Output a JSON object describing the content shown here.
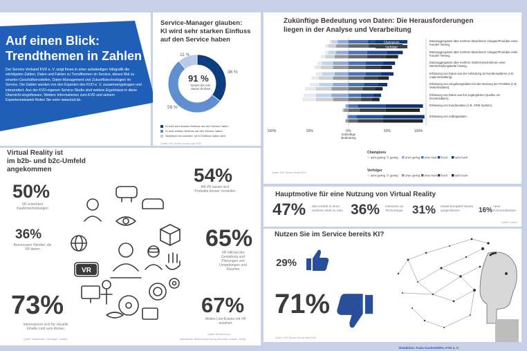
{
  "colors": {
    "navy": "#0c3d7e",
    "blue": "#1f5fb8",
    "royal": "#1b4fa0",
    "mid": "#5f8fd0",
    "light": "#b7cbe8",
    "dark": "#404040",
    "darkmid": "#6a6a6a",
    "midgrey": "#9a9a9a",
    "lightgrey": "#cfcfcf",
    "lightest": "#e8e8e8"
  },
  "intro": {
    "title_line1": "Auf einen Blick:",
    "title_line2": "Trendthemen in Zahlen",
    "body": "Der Service-Verband KVD e. V. zeigt Ihnen in einer aufwändigen Infografik die wichtigsten Zahlen, Daten und Fakten zu Trendthemen im Service, dieses Mal zu smarten Geschäftsmodellen, Daten-Management und Zukunftstechnologien im Service. Die Zahlen wurden von den Experten des KVD e. V. zusammengetragen und interpretiert. Aus der KVD-eigenen Service-Studie sind weitere Ergebnisse in diese Übersicht eingeflossen. Weitere Informationen zum KVD und seinem Expertennetzwerk finden Sie unter www.kvd.de."
  },
  "donut": {
    "title_line1": "Service-Manager glauben:",
    "title_line2": "KI wird sehr starken Einfluss",
    "title_line3": "auf den Service haben",
    "center_value": "91 %",
    "center_label": "Starker bis sehr starker Einfluss",
    "label_11": "11 %",
    "label_36": "36 %",
    "label_55": "55 %",
    "legend": [
      "KI wird sehr starken Einfluss auf den Service haben",
      "KI wird starken Einfluss auf den Service haben",
      "Skeptisch bis unsicher, ob KI Einfluss haben wird"
    ],
    "source": "Quelle: KVD Service Survey, April 2019"
  },
  "data_chart": {
    "title_line1": "Zukünftige Bedeutung von Daten: Die Herausforderungen",
    "title_line2": "liegen in der Analyse und Verarbeitung",
    "tag_champions": "Champions",
    "tag_verfolger": "Verfolger",
    "items": [
      "Datenaggregation über mehrere Maschinen/ Anlagen/Produkte eines Kunden hinweg.",
      "Datenaggregation über mehrere Maschinen/ Anlagen/Produkte vieler Kunden hinweg.",
      "Datenaggregation über mehrere Stufen/Unternehmen einer Wertschöpfungskette hinweg.",
      "Erfassung von Daten aus der Anbindung an Kundensysteme (z.B. Lagerverwaltung).",
      "Erfassung von Umgebungsdaten bei der Nutzung der Produkte (z.B. Verkehrsdaten).",
      "Erfassung von Daten aus frei zugänglichen Quellen ein (Kontextdaten).",
      "Erfassung von Kundendaten (z.B. CRM-System).",
      "Erfassung von Auftragsdaten."
    ],
    "axis_left": "100%",
    "axis_50l": "50%",
    "axis_0": "0%",
    "axis_50r": "50%",
    "axis_right": "100%",
    "axis_center_label": "Zukünftige Bedeutung",
    "legend_champions": "Champions",
    "legend_verfolger": "Verfolger",
    "legend_labels": [
      "sehr gering",
      "gering",
      "eher gering",
      "eher hoch",
      "hoch",
      "sehr hoch"
    ],
    "source": "Quelle: KVD Service Studie 2017"
  },
  "vr": {
    "title_line1": "Virtual Reality ist",
    "title_line2": "im b2b- und b2c-Umfeld",
    "title_line3": "angekommen",
    "s50": "50%",
    "s50_text": "VR erleichtert Kaufentscheidungen",
    "s36": "36%",
    "s36_text": "Bevorzugen Händler, die VR bieten",
    "s73": "73%",
    "s73_text": "Interessieren sich für virtuelle Inhalte rund ums Reisen",
    "s54": "54%",
    "s54_text": "Mit VR lassen sich Produkte besser vorstellen",
    "s65": "65%",
    "s65_text": "VR hilft bei der Gestaltung und Planungen von Umgebungen und Räumen",
    "s67": "67%",
    "s67_text": "Wollen Live-Events mit VR ansehen",
    "source_left": "Quelle: Statista.com / Greenlight / Statista",
    "source_mid": "Quelle: Michael Brunn",
    "source_illu": "Illustrationen: Benfermhaus Kalmig, Alexander Limbach, 2k22lg",
    "vr_glasses_text": "VR"
  },
  "motive": {
    "title": "Hauptmotive für eine Nutzung von Virtual Reality",
    "s47": "47%",
    "s47_text": "das Gefühl in einer anderen Welt zu sein",
    "s36": "36%",
    "s36_text": "Interesse an Technologie",
    "s31": "31%",
    "s31_text": "etwas komplett Neues ausprobieren",
    "s16": "16%",
    "s16_text": "neue Kommunikation",
    "source": "Quelle: Zoocon"
  },
  "ki": {
    "title": "Nutzen Sie im Service bereits KI?",
    "s29": "29%",
    "s71": "71%",
    "source": "Quelle: KVD Service Survey, April 2019"
  },
  "footer": {
    "text": "Redaktion: Fazia Kuchenhöfer, KVD e. V."
  },
  "chart_data": [
    {
      "type": "pie",
      "title": "Service-Manager glauben: KI wird sehr starken Einfluss auf den Service haben",
      "series": [
        {
          "name": "KI wird sehr starken Einfluss auf den Service haben",
          "values": [
            36
          ]
        },
        {
          "name": "KI wird starken Einfluss auf den Service haben",
          "values": [
            55
          ]
        },
        {
          "name": "Skeptisch bis unsicher, ob KI Einfluss haben wird",
          "values": [
            11
          ]
        }
      ],
      "center_value": "91 %"
    },
    {
      "type": "bar",
      "title": "Zukünftige Bedeutung von Daten: Die Herausforderungen liegen in der Analyse und Verarbeitung",
      "xlabel": "Zukünftige Bedeutung",
      "xlim": [
        -100,
        100
      ],
      "categories": [
        "Datenaggregation über mehrere Maschinen/ Anlagen/Produkte eines Kunden hinweg.",
        "Datenaggregation über mehrere Maschinen/ Anlagen/Produkte vieler Kunden hinweg.",
        "Datenaggregation über mehrere Stufen/Unternehmen einer Wertschöpfungskette hinweg.",
        "Erfassung von Daten aus der Anbindung an Kundensysteme (z.B. Lagerverwaltung).",
        "Erfassung von Umgebungsdaten bei der Nutzung der Produkte (z.B. Verkehrsdaten).",
        "Erfassung von Daten aus frei zugänglichen Quellen ein (Kontextdaten).",
        "Erfassung von Kundendaten (z.B. CRM-System).",
        "Erfassung von Auftragsdaten."
      ],
      "stack_order": [
        "sehr gering",
        "gering",
        "eher gering",
        "eher hoch",
        "hoch",
        "sehr hoch"
      ],
      "groups": [
        {
          "name": "Champions",
          "rows": [
            [
              3,
              8,
              14,
              25,
              28,
              22
            ],
            [
              4,
              10,
              16,
              24,
              26,
              20
            ],
            [
              6,
              14,
              20,
              22,
              22,
              16
            ],
            [
              8,
              16,
              18,
              22,
              20,
              16
            ],
            [
              12,
              18,
              20,
              20,
              18,
              12
            ],
            [
              16,
              20,
              22,
              16,
              16,
              10
            ],
            [
              0,
              0,
              4,
              12,
              36,
              48
            ],
            [
              0,
              0,
              2,
              10,
              34,
              54
            ]
          ]
        },
        {
          "name": "Verfolger",
          "rows": [
            [
              4,
              10,
              16,
              26,
              26,
              18
            ],
            [
              6,
              12,
              18,
              24,
              24,
              16
            ],
            [
              8,
              16,
              20,
              22,
              20,
              14
            ],
            [
              10,
              18,
              20,
              20,
              18,
              14
            ],
            [
              14,
              20,
              22,
              18,
              16,
              10
            ],
            [
              18,
              22,
              20,
              16,
              14,
              10
            ],
            [
              0,
              2,
              6,
              14,
              34,
              44
            ],
            [
              0,
              0,
              4,
              12,
              32,
              52
            ]
          ]
        }
      ]
    },
    {
      "type": "bar",
      "title": "Virtual Reality ist im b2b- und b2c-Umfeld angekommen",
      "categories": [
        "VR erleichtert Kaufentscheidungen",
        "Bevorzugen Händler, die VR bieten",
        "Interessieren sich für virtuelle Inhalte rund ums Reisen",
        "Mit VR lassen sich Produkte besser vorstellen",
        "VR hilft bei der Gestaltung und Planungen von Umgebungen und Räumen",
        "Wollen Live-Events mit VR ansehen"
      ],
      "values": [
        50,
        36,
        73,
        54,
        65,
        67
      ]
    },
    {
      "type": "bar",
      "title": "Hauptmotive für eine Nutzung von Virtual Reality",
      "categories": [
        "das Gefühl in einer anderen Welt zu sein",
        "Interesse an Technologie",
        "etwas komplett Neues ausprobieren",
        "neue Kommunikation"
      ],
      "values": [
        47,
        36,
        31,
        16
      ]
    },
    {
      "type": "bar",
      "title": "Nutzen Sie im Service bereits KI?",
      "categories": [
        "Daumen hoch",
        "Daumen runter"
      ],
      "values": [
        29,
        71
      ]
    }
  ]
}
